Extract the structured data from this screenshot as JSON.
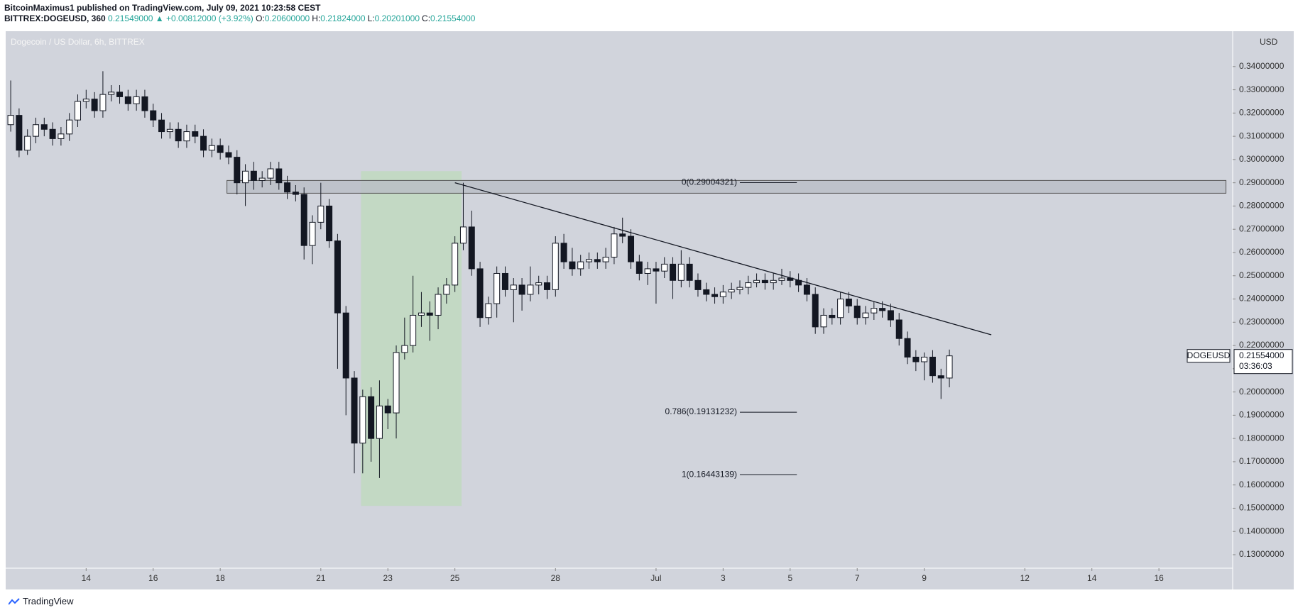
{
  "header": {
    "author_line": "BitcoinMaximus1 published on TradingView.com, July 09, 2021 10:23:58 CEST",
    "symbol": "BITTREX:DOGEUSD, 360",
    "last": "0.21549000",
    "change": "▲ +0.00812000 (+3.92%)",
    "ohlc": [
      {
        "key": "O:",
        "value": "0.20600000"
      },
      {
        "key": "H:",
        "value": "0.21824000"
      },
      {
        "key": "L:",
        "value": "0.20201000"
      },
      {
        "key": "C:",
        "value": "0.21554000"
      }
    ]
  },
  "footer": "TradingView",
  "chart_data": {
    "type": "candlestick",
    "title": "Dogecoin / US Dollar, 6h, BITTREX",
    "currency": "USD",
    "background": "#d1d4dc",
    "up_color": "#ffffff",
    "down_color": "#131722",
    "xlim": [
      11.6,
      48.2
    ],
    "ylim": [
      0.1242,
      0.3552
    ],
    "xticks": [
      14,
      16,
      18,
      21,
      23,
      25,
      28,
      {
        "value": 31,
        "label": "Jul"
      },
      {
        "value": 33,
        "label": "3"
      },
      {
        "value": 35,
        "label": "5"
      },
      {
        "value": 37,
        "label": "7"
      },
      {
        "value": 39,
        "label": "9"
      },
      {
        "value": 42,
        "label": "12"
      },
      {
        "value": 44,
        "label": "14"
      },
      {
        "value": 46,
        "label": "16"
      }
    ],
    "yticks": [
      {
        "value": 0.13,
        "label": "0.13000000"
      },
      {
        "value": 0.14,
        "label": "0.14000000"
      },
      {
        "value": 0.15,
        "label": "0.15000000"
      },
      {
        "value": 0.16,
        "label": "0.16000000"
      },
      {
        "value": 0.17,
        "label": "0.17000000"
      },
      {
        "value": 0.18,
        "label": "0.18000000"
      },
      {
        "value": 0.19,
        "label": "0.19000000"
      },
      {
        "value": 0.2,
        "label": "0.20000000"
      },
      {
        "value": 0.21,
        "label": "0.21000000"
      },
      {
        "value": 0.22,
        "label": "0.22000000"
      },
      {
        "value": 0.23,
        "label": "0.23000000"
      },
      {
        "value": 0.24,
        "label": "0.24000000"
      },
      {
        "value": 0.25,
        "label": "0.25000000"
      },
      {
        "value": 0.26,
        "label": "0.26000000"
      },
      {
        "value": 0.27,
        "label": "0.27000000"
      },
      {
        "value": 0.28,
        "label": "0.28000000"
      },
      {
        "value": 0.29,
        "label": "0.29000000"
      },
      {
        "value": 0.3,
        "label": "0.30000000"
      },
      {
        "value": 0.31,
        "label": "0.31000000"
      },
      {
        "value": 0.32,
        "label": "0.32000000"
      },
      {
        "value": 0.33,
        "label": "0.33000000"
      },
      {
        "value": 0.34,
        "label": "0.34000000"
      }
    ],
    "x": [
      11.75,
      12,
      12.25,
      12.5,
      12.75,
      13,
      13.25,
      13.5,
      13.75,
      14,
      14.25,
      14.5,
      14.75,
      15,
      15.25,
      15.5,
      15.75,
      16,
      16.25,
      16.5,
      16.75,
      17,
      17.25,
      17.5,
      17.75,
      18,
      18.25,
      18.5,
      18.75,
      19,
      19.25,
      19.5,
      19.75,
      20,
      20.25,
      20.5,
      20.75,
      21,
      21.25,
      21.5,
      21.75,
      22,
      22.25,
      22.5,
      22.75,
      23,
      23.25,
      23.5,
      23.75,
      24,
      24.25,
      24.5,
      24.75,
      25,
      25.25,
      25.5,
      25.75,
      26,
      26.25,
      26.5,
      26.75,
      27,
      27.25,
      27.5,
      27.75,
      28,
      28.25,
      28.5,
      28.75,
      29,
      29.25,
      29.5,
      29.75,
      30,
      30.25,
      30.5,
      30.75,
      31,
      31.25,
      31.5,
      31.75,
      32,
      32.25,
      32.5,
      32.75,
      33,
      33.25,
      33.5,
      33.75,
      34,
      34.25,
      34.5,
      34.75,
      35,
      35.25,
      35.5,
      35.75,
      36,
      36.25,
      36.5,
      36.75,
      37,
      37.25,
      37.5,
      37.75,
      38,
      38.25,
      38.5,
      38.75,
      39,
      39.25,
      39.5,
      39.75
    ],
    "open": [
      0.315,
      0.319,
      0.304,
      0.31,
      0.315,
      0.313,
      0.309,
      0.311,
      0.317,
      0.325,
      0.326,
      0.321,
      0.328,
      0.329,
      0.327,
      0.324,
      0.327,
      0.321,
      0.317,
      0.312,
      0.313,
      0.308,
      0.312,
      0.31,
      0.304,
      0.306,
      0.303,
      0.301,
      0.29,
      0.295,
      0.291,
      0.292,
      0.296,
      0.29,
      0.286,
      0.285,
      0.263,
      0.273,
      0.28,
      0.265,
      0.234,
      0.206,
      0.178,
      0.198,
      0.18,
      0.194,
      0.191,
      0.217,
      0.22,
      0.233,
      0.234,
      0.233,
      0.242,
      0.246,
      0.264,
      0.271,
      0.253,
      0.232,
      0.238,
      0.251,
      0.244,
      0.246,
      0.242,
      0.246,
      0.247,
      0.244,
      0.264,
      0.256,
      0.253,
      0.256,
      0.257,
      0.256,
      0.258,
      0.268,
      0.267,
      0.256,
      0.251,
      0.253,
      0.252,
      0.255,
      0.248,
      0.255,
      0.248,
      0.244,
      0.242,
      0.241,
      0.243,
      0.244,
      0.245,
      0.247,
      0.248,
      0.247,
      0.248,
      0.249,
      0.248,
      0.246,
      0.242,
      0.228,
      0.233,
      0.232,
      0.24,
      0.237,
      0.232,
      0.234,
      0.236,
      0.235,
      0.231,
      0.223,
      0.215,
      0.213,
      0.215,
      0.207,
      0.206
    ],
    "high": [
      0.334,
      0.322,
      0.313,
      0.318,
      0.318,
      0.316,
      0.314,
      0.32,
      0.328,
      0.33,
      0.329,
      0.338,
      0.332,
      0.332,
      0.33,
      0.33,
      0.33,
      0.324,
      0.32,
      0.316,
      0.316,
      0.315,
      0.315,
      0.313,
      0.309,
      0.309,
      0.306,
      0.304,
      0.298,
      0.299,
      0.295,
      0.299,
      0.299,
      0.293,
      0.289,
      0.288,
      0.276,
      0.29,
      0.283,
      0.268,
      0.237,
      0.209,
      0.201,
      0.202,
      0.205,
      0.197,
      0.22,
      0.232,
      0.25,
      0.243,
      0.239,
      0.245,
      0.249,
      0.267,
      0.29,
      0.278,
      0.256,
      0.241,
      0.254,
      0.254,
      0.249,
      0.249,
      0.254,
      0.25,
      0.25,
      0.267,
      0.268,
      0.262,
      0.259,
      0.26,
      0.26,
      0.262,
      0.271,
      0.275,
      0.27,
      0.259,
      0.256,
      0.256,
      0.258,
      0.258,
      0.261,
      0.258,
      0.251,
      0.247,
      0.245,
      0.246,
      0.247,
      0.248,
      0.25,
      0.251,
      0.251,
      0.251,
      0.253,
      0.252,
      0.251,
      0.249,
      0.245,
      0.236,
      0.236,
      0.243,
      0.243,
      0.24,
      0.237,
      0.239,
      0.239,
      0.238,
      0.234,
      0.226,
      0.218,
      0.217,
      0.218,
      0.21,
      0.21824
    ],
    "low": [
      0.312,
      0.301,
      0.302,
      0.307,
      0.31,
      0.306,
      0.306,
      0.308,
      0.314,
      0.322,
      0.318,
      0.318,
      0.325,
      0.324,
      0.321,
      0.321,
      0.318,
      0.314,
      0.309,
      0.309,
      0.305,
      0.305,
      0.307,
      0.301,
      0.301,
      0.3,
      0.298,
      0.285,
      0.28,
      0.287,
      0.288,
      0.289,
      0.287,
      0.283,
      0.282,
      0.257,
      0.255,
      0.27,
      0.262,
      0.21,
      0.19,
      0.165,
      0.165,
      0.17,
      0.163,
      0.184,
      0.18,
      0.214,
      0.217,
      0.228,
      0.222,
      0.227,
      0.238,
      0.243,
      0.261,
      0.25,
      0.228,
      0.229,
      0.232,
      0.241,
      0.23,
      0.235,
      0.239,
      0.242,
      0.24,
      0.241,
      0.253,
      0.25,
      0.25,
      0.253,
      0.253,
      0.253,
      0.255,
      0.264,
      0.253,
      0.248,
      0.246,
      0.238,
      0.249,
      0.24,
      0.245,
      0.245,
      0.241,
      0.239,
      0.238,
      0.238,
      0.24,
      0.242,
      0.242,
      0.245,
      0.244,
      0.244,
      0.246,
      0.245,
      0.243,
      0.239,
      0.225,
      0.225,
      0.229,
      0.229,
      0.234,
      0.229,
      0.229,
      0.231,
      0.232,
      0.228,
      0.22,
      0.212,
      0.209,
      0.205,
      0.204,
      0.197,
      0.20201
    ],
    "close": [
      0.319,
      0.304,
      0.31,
      0.315,
      0.313,
      0.309,
      0.311,
      0.317,
      0.325,
      0.326,
      0.321,
      0.328,
      0.329,
      0.327,
      0.324,
      0.327,
      0.321,
      0.317,
      0.312,
      0.313,
      0.308,
      0.312,
      0.31,
      0.304,
      0.306,
      0.303,
      0.301,
      0.29,
      0.295,
      0.291,
      0.292,
      0.296,
      0.29,
      0.286,
      0.285,
      0.263,
      0.273,
      0.28,
      0.265,
      0.234,
      0.206,
      0.178,
      0.198,
      0.18,
      0.194,
      0.191,
      0.217,
      0.22,
      0.233,
      0.234,
      0.233,
      0.242,
      0.246,
      0.264,
      0.271,
      0.253,
      0.232,
      0.238,
      0.251,
      0.244,
      0.246,
      0.242,
      0.246,
      0.247,
      0.244,
      0.264,
      0.256,
      0.253,
      0.256,
      0.257,
      0.256,
      0.258,
      0.268,
      0.267,
      0.256,
      0.251,
      0.253,
      0.252,
      0.255,
      0.248,
      0.255,
      0.248,
      0.244,
      0.242,
      0.241,
      0.243,
      0.244,
      0.245,
      0.247,
      0.248,
      0.247,
      0.248,
      0.249,
      0.248,
      0.246,
      0.242,
      0.228,
      0.233,
      0.232,
      0.24,
      0.237,
      0.232,
      0.234,
      0.236,
      0.235,
      0.231,
      0.223,
      0.215,
      0.213,
      0.215,
      0.207,
      0.206,
      0.21554
    ],
    "highlight": {
      "x": [
        22.2,
        25.2
      ],
      "y": [
        0.151,
        0.295
      ],
      "color": "#c3d9c4"
    },
    "zone": {
      "x": [
        18.2,
        48.0
      ],
      "y": [
        0.2855,
        0.291
      ],
      "color": "#b9bdc6"
    },
    "trendline": {
      "x": [
        25.0,
        41.0
      ],
      "y": [
        0.29,
        0.2246
      ],
      "color": "#131722"
    },
    "fib": {
      "x": [
        33.5,
        35.2
      ],
      "levels": [
        {
          "label": "0(0.29004321)",
          "value": 0.29004321
        },
        {
          "label": "0.786(0.19131232)",
          "value": 0.19131232
        },
        {
          "label": "1(0.16443139)",
          "value": 0.16443139
        }
      ]
    },
    "last_price": {
      "symbol": "DOGEUSD",
      "label": "0.21554000",
      "countdown": "03:36:03"
    }
  }
}
